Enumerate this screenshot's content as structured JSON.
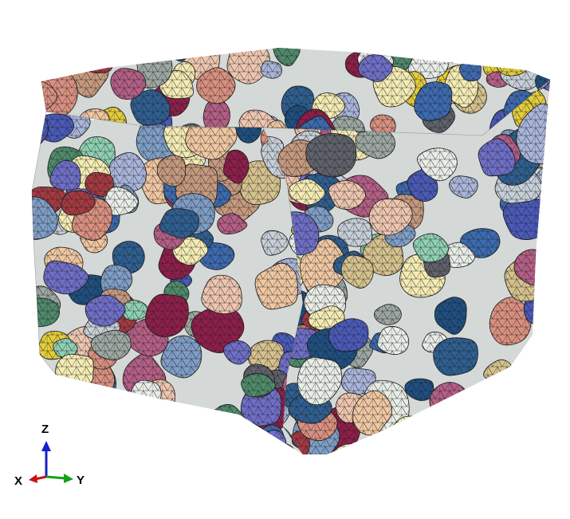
{
  "viewport": {
    "background": "#ffffff",
    "mesh_line_color": "#1a1a1a"
  },
  "model": {
    "shape": "aggregate-packed-cube",
    "element_type": "tetrahedral-mesh",
    "palette": [
      "#e9ede8",
      "#c7cfd8",
      "#a9b5da",
      "#6f6fc8",
      "#4a5ab8",
      "#1f4f80",
      "#2f5f90",
      "#8d1f4a",
      "#a33a42",
      "#b45f86",
      "#d99080",
      "#efc7a2",
      "#d6c28e",
      "#f4ecb4",
      "#e3cd3c",
      "#4f8a6a",
      "#8fd0b4",
      "#9da7a2",
      "#5f626a",
      "#c69a7f",
      "#eec6b0",
      "#7f9ec6",
      "#3d6ab0"
    ]
  },
  "triad": {
    "labels": {
      "x": "X",
      "y": "Y",
      "z": "Z"
    },
    "colors": {
      "x": "#c81414",
      "y": "#14a014",
      "z": "#1420c8"
    }
  }
}
